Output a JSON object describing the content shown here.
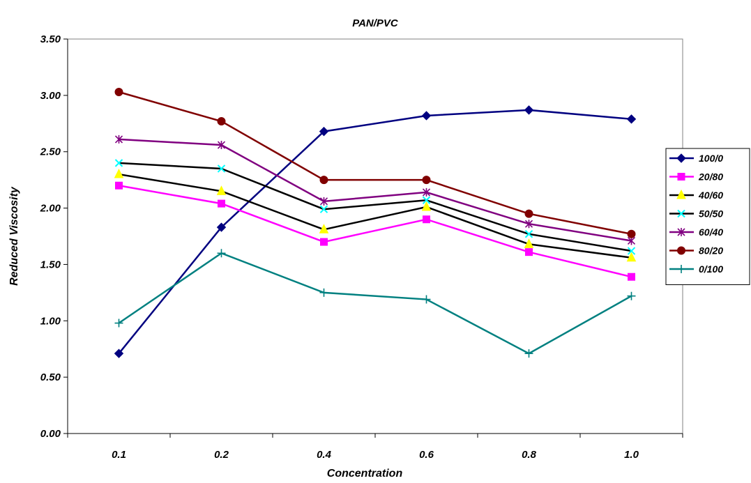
{
  "chart_data": {
    "type": "line",
    "title": "PAN/PVC",
    "xlabel": "Concentration",
    "ylabel": "Reduced Viscosity",
    "categories": [
      "0.1",
      "0.2",
      "0.4",
      "0.6",
      "0.8",
      "1.0"
    ],
    "yticks": [
      "0.00",
      "0.50",
      "1.00",
      "1.50",
      "2.00",
      "2.50",
      "3.00",
      "3.50"
    ],
    "ylim": [
      0,
      3.5
    ],
    "grid": false,
    "legend_position": "right",
    "series": [
      {
        "name": "100/0",
        "color": "#000080",
        "marker": "diamond",
        "values": [
          0.71,
          1.83,
          2.68,
          2.82,
          2.87,
          2.79
        ]
      },
      {
        "name": "20/80",
        "color": "#ff00ff",
        "marker": "square",
        "values": [
          2.2,
          2.04,
          1.7,
          1.9,
          1.61,
          1.39
        ]
      },
      {
        "name": "40/60",
        "color": "#000000",
        "marker": "triangle",
        "marker_color": "#ffff00",
        "values": [
          2.3,
          2.15,
          1.81,
          2.01,
          1.68,
          1.56
        ]
      },
      {
        "name": "50/50",
        "color": "#000000",
        "marker": "x",
        "marker_color": "#00ffff",
        "values": [
          2.4,
          2.35,
          1.99,
          2.07,
          1.77,
          1.62
        ]
      },
      {
        "name": "60/40",
        "color": "#800080",
        "marker": "star",
        "values": [
          2.61,
          2.56,
          2.06,
          2.14,
          1.86,
          1.71
        ]
      },
      {
        "name": "80/20",
        "color": "#800000",
        "marker": "circle",
        "values": [
          3.03,
          2.77,
          2.25,
          2.25,
          1.95,
          1.77
        ]
      },
      {
        "name": "0/100",
        "color": "#008080",
        "marker": "plus",
        "values": [
          0.98,
          1.6,
          1.25,
          1.19,
          0.71,
          1.22
        ]
      }
    ]
  }
}
